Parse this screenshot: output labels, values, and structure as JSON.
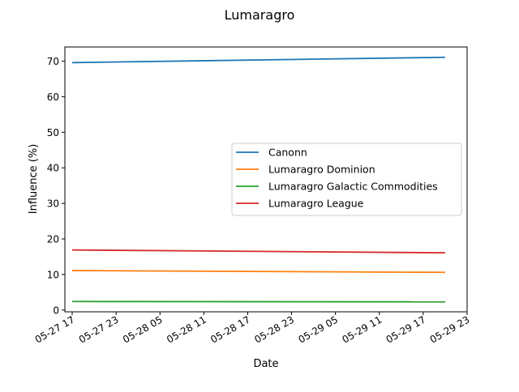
{
  "chart_data": {
    "type": "line",
    "title": "Lumaragro",
    "xlabel": "Date",
    "ylabel": "Influence (%)",
    "x": [
      "2025-05-27 17:00",
      "2025-05-29 20:00"
    ],
    "x_ticks": [
      "05-27 17",
      "05-27 23",
      "05-28 05",
      "05-28 11",
      "05-28 17",
      "05-28 23",
      "05-29 05",
      "05-29 11",
      "05-29 17",
      "05-29 23"
    ],
    "xlim": [
      "2025-05-27 16:00",
      "2025-05-29 23:00"
    ],
    "y_ticks": [
      "0",
      "10",
      "20",
      "30",
      "40",
      "50",
      "60",
      "70"
    ],
    "ylim": [
      -0.5,
      74.0
    ],
    "grid": false,
    "legend": "center-right",
    "series": [
      {
        "name": "Canonn",
        "color": "#1f77b4",
        "values": [
          69.6,
          71.1
        ]
      },
      {
        "name": "Lumaragro Dominion",
        "color": "#ff7f0e",
        "values": [
          11.1,
          10.6
        ]
      },
      {
        "name": "Lumaragro Galactic Commodities",
        "color": "#2ca02c",
        "values": [
          2.4,
          2.3
        ]
      },
      {
        "name": "Lumaragro League",
        "color": "#d62728",
        "values": [
          16.9,
          16.1
        ]
      }
    ]
  }
}
